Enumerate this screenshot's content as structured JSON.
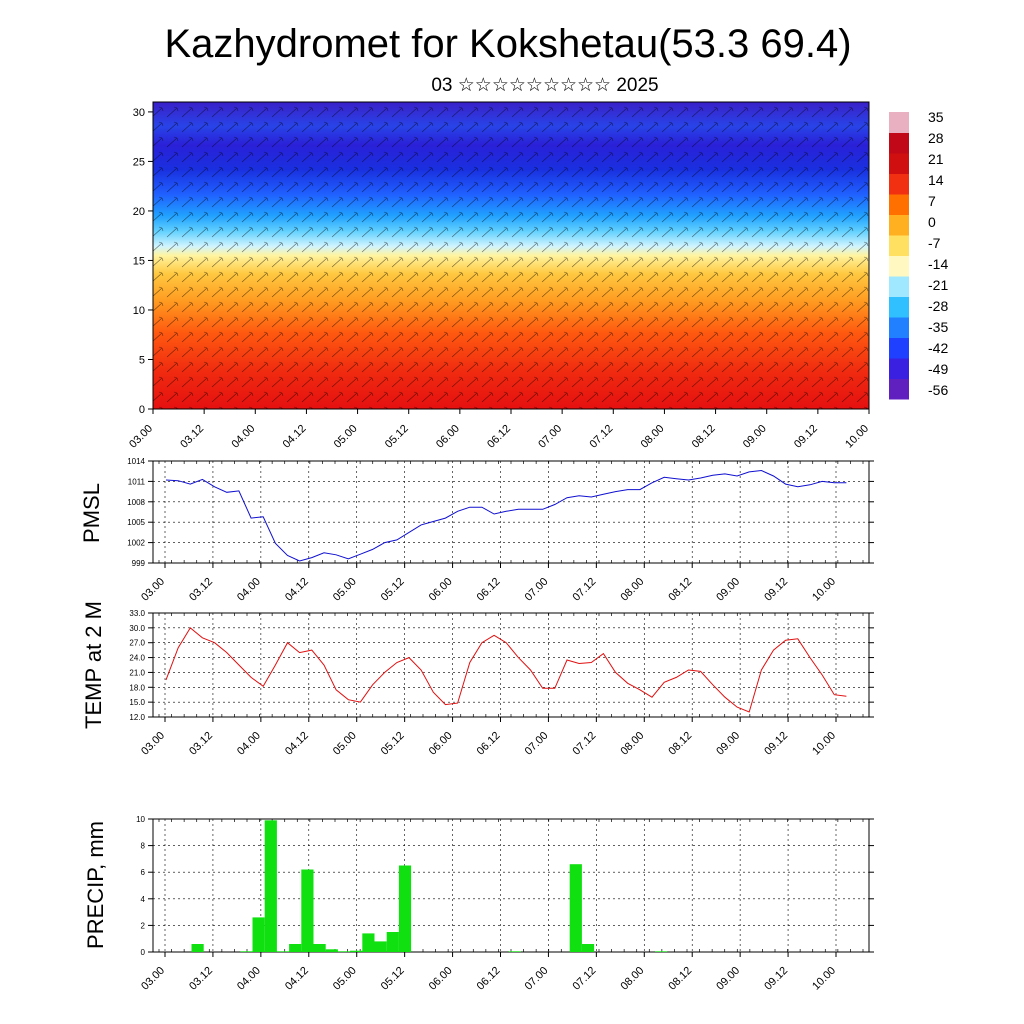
{
  "header": {
    "title": "Kazhydromet for Kokshetau(53.3 69.4)",
    "subtitle": "03 ☆☆☆☆☆☆☆☆☆ 2025"
  },
  "x_ticks": [
    "03.00",
    "03.12",
    "04.00",
    "04.12",
    "05.00",
    "05.12",
    "06.00",
    "06.12",
    "07.00",
    "07.12",
    "08.00",
    "08.12",
    "09.00",
    "09.12",
    "10.00"
  ],
  "chart_data": [
    {
      "type": "heatmap",
      "name": "temperature-cross-section",
      "yticks": [
        "0",
        "5",
        "10",
        "15",
        "20",
        "25",
        "30"
      ],
      "ylim": [
        0,
        31
      ],
      "colorbar_labels": [
        "35",
        "28",
        "21",
        "14",
        "7",
        "0",
        "-7",
        "-14",
        "-21",
        "-28",
        "-35",
        "-42",
        "-49",
        "-56"
      ],
      "colorbar_colors": [
        "#6020c0",
        "#3a20e0",
        "#2040ff",
        "#2080ff",
        "#30c0ff",
        "#a0e8ff",
        "#fff8c0",
        "#ffe060",
        "#ffb020",
        "#ff7000",
        "#f03010",
        "#d01010",
        "#c00818",
        "#e8b0c0"
      ]
    },
    {
      "type": "line",
      "ylabel": "PMSL",
      "yticks": [
        "1014",
        "1011",
        "1008",
        "1005",
        "1002",
        "999"
      ],
      "ylim": [
        999,
        1014
      ],
      "color": "#1010d0",
      "values": [
        1011.2,
        1011.1,
        1010.6,
        1011.3,
        1010.2,
        1009.4,
        1009.6,
        1005.6,
        1005.8,
        1001.9,
        1000.1,
        999.3,
        999.8,
        1000.5,
        1000.2,
        999.6,
        1000.3,
        1001.0,
        1002.0,
        1002.4,
        1003.5,
        1004.6,
        1005.1,
        1005.6,
        1006.6,
        1007.2,
        1007.2,
        1006.2,
        1006.6,
        1006.9,
        1006.9,
        1006.9,
        1007.6,
        1008.6,
        1008.9,
        1008.7,
        1009.1,
        1009.5,
        1009.8,
        1009.8,
        1010.8,
        1011.6,
        1011.4,
        1011.2,
        1011.5,
        1011.9,
        1012.1,
        1011.8,
        1012.4,
        1012.6,
        1011.8,
        1010.6,
        1010.2,
        1010.5,
        1011.0,
        1010.8,
        1010.8
      ]
    },
    {
      "type": "line",
      "ylabel": "TEMP at 2 M",
      "yticks": [
        "33.0",
        "30.0",
        "27.0",
        "24.0",
        "21.0",
        "18.0",
        "15.0",
        "12.0"
      ],
      "ylim": [
        12,
        33
      ],
      "color": "#e01010",
      "values": [
        19.5,
        26.0,
        30.0,
        28.0,
        27.0,
        25.0,
        22.5,
        20.0,
        18.2,
        22.5,
        27.0,
        25.0,
        25.5,
        22.5,
        17.5,
        15.5,
        15.0,
        18.5,
        21.0,
        23.0,
        24.0,
        21.5,
        17.0,
        14.5,
        14.8,
        23.0,
        27.0,
        28.5,
        27.0,
        24.0,
        21.5,
        17.8,
        17.8,
        23.5,
        22.8,
        23.0,
        24.8,
        21.0,
        18.8,
        17.5,
        16.0,
        19.0,
        20.0,
        21.5,
        21.2,
        18.5,
        16.0,
        14.0,
        13.0,
        21.5,
        25.5,
        27.5,
        27.8,
        24.0,
        20.5,
        16.5,
        16.2
      ]
    },
    {
      "type": "bar",
      "ylabel": "PRECIP, mm",
      "yticks": [
        "10",
        "8",
        "6",
        "4",
        "2",
        "0"
      ],
      "ylim": [
        0,
        10
      ],
      "color": "#10e010",
      "values": [
        0,
        0,
        0,
        0.6,
        0,
        0,
        0,
        0.05,
        2.6,
        9.9,
        0.05,
        0.6,
        6.2,
        0.6,
        0.2,
        0.05,
        0.1,
        1.4,
        0.8,
        1.5,
        6.5,
        0,
        0,
        0,
        0,
        0,
        0,
        0,
        0,
        0.05,
        0,
        0,
        0,
        0,
        6.6,
        0.6,
        0,
        0,
        0,
        0,
        0,
        0.05,
        0,
        0,
        0,
        0,
        0,
        0,
        0,
        0,
        0,
        0,
        0,
        0,
        0,
        0,
        0
      ]
    }
  ]
}
